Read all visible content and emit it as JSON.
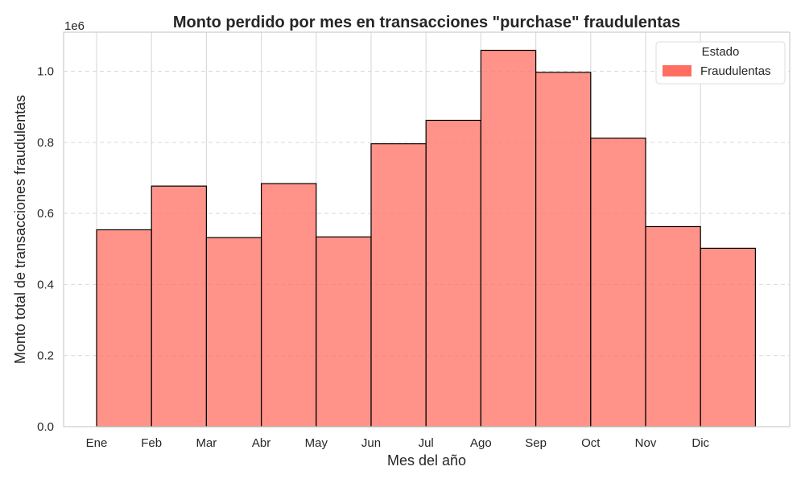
{
  "chart_data": {
    "type": "bar",
    "title": "Monto perdido por mes en transacciones \"purchase\" fraudulentas",
    "xlabel": "Mes del año",
    "ylabel": "Monto total de transacciones fraudulentas",
    "y_scale_label": "1e6",
    "categories": [
      "Ene",
      "Feb",
      "Mar",
      "Abr",
      "May",
      "Jun",
      "Jul",
      "Ago",
      "Sep",
      "Oct",
      "Nov",
      "Dic"
    ],
    "series": [
      {
        "name": "Fraudulentas",
        "color": "#ff6f61",
        "values": [
          554000,
          677000,
          532000,
          684000,
          534000,
          796000,
          862000,
          1059000,
          997000,
          812000,
          563000,
          502000
        ]
      }
    ],
    "ylim": [
      0,
      1110000
    ],
    "yticks": [
      0,
      200000,
      400000,
      600000,
      800000,
      1000000
    ],
    "ytick_labels": [
      "0.0",
      "0.2",
      "0.4",
      "0.6",
      "0.8",
      "1.0"
    ],
    "grid": true,
    "legend": {
      "title": "Estado",
      "placement": "top-right",
      "entries": [
        "Fraudulentas"
      ]
    }
  }
}
